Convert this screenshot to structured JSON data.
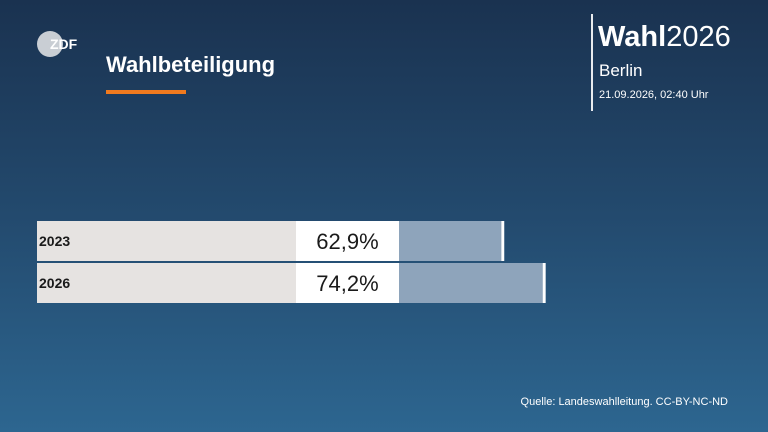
{
  "logo": {
    "text": "ZDF"
  },
  "header": {
    "title": "Wahlbeteiligung",
    "brand_bold": "Wahl",
    "brand_year": "2026",
    "region": "Berlin",
    "timestamp": "21.09.2026, 02:40 Uhr"
  },
  "chart_data": {
    "type": "bar",
    "orientation": "horizontal",
    "title": "Wahlbeteiligung",
    "categories": [
      "2023",
      "2026"
    ],
    "values": [
      62.9,
      74.2
    ],
    "value_labels": [
      "62,9%",
      "74,2%"
    ],
    "unit": "%",
    "xlim": [
      0,
      100
    ],
    "colors": {
      "bar": "#8ea4bb",
      "label_bg": "#e6e3e1",
      "value_box": "#ffffff",
      "text": "#1a1a1a"
    }
  },
  "footer": {
    "source": "Quelle: Landeswahlleitung. CC-BY-NC-ND"
  }
}
